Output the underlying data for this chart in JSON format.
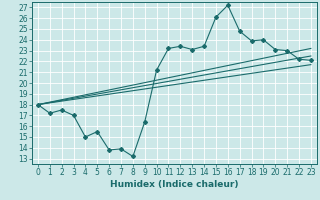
{
  "xlabel": "Humidex (Indice chaleur)",
  "bg_color": "#cce8e8",
  "line_color": "#1a6b6b",
  "grid_color": "#ffffff",
  "xlim": [
    -0.5,
    23.5
  ],
  "ylim": [
    12.5,
    27.5
  ],
  "yticks": [
    13,
    14,
    15,
    16,
    17,
    18,
    19,
    20,
    21,
    22,
    23,
    24,
    25,
    26,
    27
  ],
  "xticks": [
    0,
    1,
    2,
    3,
    4,
    5,
    6,
    7,
    8,
    9,
    10,
    11,
    12,
    13,
    14,
    15,
    16,
    17,
    18,
    19,
    20,
    21,
    22,
    23
  ],
  "main_series_x": [
    0,
    1,
    2,
    3,
    4,
    5,
    6,
    7,
    8,
    9,
    10,
    11,
    12,
    13,
    14,
    15,
    16,
    17,
    18,
    19,
    20,
    21,
    22,
    23
  ],
  "main_series_y": [
    18.0,
    17.2,
    17.5,
    17.0,
    15.0,
    15.5,
    13.8,
    13.9,
    13.2,
    16.4,
    21.2,
    23.2,
    23.4,
    23.1,
    23.4,
    26.1,
    27.2,
    24.8,
    23.9,
    24.0,
    23.1,
    23.0,
    22.2,
    22.1
  ],
  "upper_line_x": [
    0,
    23
  ],
  "upper_line_y": [
    18.0,
    23.2
  ],
  "mid_line_x": [
    0,
    23
  ],
  "mid_line_y": [
    18.0,
    22.5
  ],
  "lower_line_x": [
    0,
    23
  ],
  "lower_line_y": [
    18.0,
    21.7
  ],
  "tick_fontsize": 5.5,
  "xlabel_fontsize": 6.5
}
